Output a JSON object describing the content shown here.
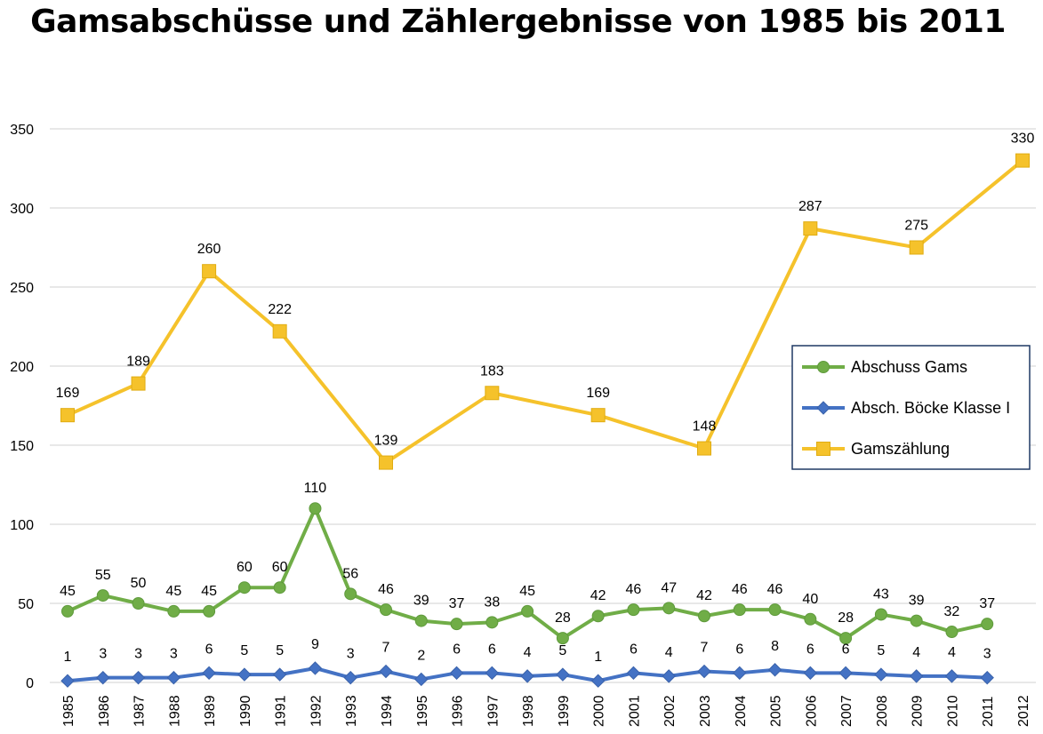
{
  "chart_data": {
    "type": "line",
    "title": "Gamsabschüsse und Zählergebnisse von 1985 bis 2011",
    "categories": [
      "1985",
      "1986",
      "1987",
      "1988",
      "1989",
      "1990",
      "1991",
      "1992",
      "1993",
      "1994",
      "1995",
      "1996",
      "1997",
      "1998",
      "1999",
      "2000",
      "2001",
      "2002",
      "2003",
      "2004",
      "2005",
      "2006",
      "2007",
      "2008",
      "2009",
      "2010",
      "2011",
      "2012"
    ],
    "y_ticks": [
      0,
      50,
      100,
      150,
      200,
      250,
      300,
      350
    ],
    "ylim": [
      0,
      350
    ],
    "grid": true,
    "legend_position": "right",
    "series": [
      {
        "name": "Abschuss Gams",
        "color": "#70AD47",
        "marker": "circle",
        "points": [
          {
            "x": "1985",
            "y": 45
          },
          {
            "x": "1986",
            "y": 55
          },
          {
            "x": "1987",
            "y": 50
          },
          {
            "x": "1988",
            "y": 45
          },
          {
            "x": "1989",
            "y": 45
          },
          {
            "x": "1990",
            "y": 60
          },
          {
            "x": "1991",
            "y": 60
          },
          {
            "x": "1992",
            "y": 110
          },
          {
            "x": "1993",
            "y": 56
          },
          {
            "x": "1994",
            "y": 46
          },
          {
            "x": "1995",
            "y": 39
          },
          {
            "x": "1996",
            "y": 37
          },
          {
            "x": "1997",
            "y": 38
          },
          {
            "x": "1998",
            "y": 45
          },
          {
            "x": "1999",
            "y": 28
          },
          {
            "x": "2000",
            "y": 42
          },
          {
            "x": "2001",
            "y": 46
          },
          {
            "x": "2002",
            "y": 47
          },
          {
            "x": "2003",
            "y": 42
          },
          {
            "x": "2004",
            "y": 46
          },
          {
            "x": "2005",
            "y": 46
          },
          {
            "x": "2006",
            "y": 40
          },
          {
            "x": "2007",
            "y": 28
          },
          {
            "x": "2008",
            "y": 43
          },
          {
            "x": "2009",
            "y": 39
          },
          {
            "x": "2010",
            "y": 32
          },
          {
            "x": "2011",
            "y": 37
          }
        ]
      },
      {
        "name": "Absch. Böcke Klasse I",
        "color": "#4472C4",
        "marker": "diamond",
        "points": [
          {
            "x": "1985",
            "y": 1
          },
          {
            "x": "1986",
            "y": 3
          },
          {
            "x": "1987",
            "y": 3
          },
          {
            "x": "1988",
            "y": 3
          },
          {
            "x": "1989",
            "y": 6
          },
          {
            "x": "1990",
            "y": 5
          },
          {
            "x": "1991",
            "y": 5
          },
          {
            "x": "1992",
            "y": 9
          },
          {
            "x": "1993",
            "y": 3
          },
          {
            "x": "1994",
            "y": 7
          },
          {
            "x": "1995",
            "y": 2
          },
          {
            "x": "1996",
            "y": 6
          },
          {
            "x": "1997",
            "y": 6
          },
          {
            "x": "1998",
            "y": 4
          },
          {
            "x": "1999",
            "y": 5
          },
          {
            "x": "2000",
            "y": 1
          },
          {
            "x": "2001",
            "y": 6
          },
          {
            "x": "2002",
            "y": 4
          },
          {
            "x": "2003",
            "y": 7
          },
          {
            "x": "2004",
            "y": 6
          },
          {
            "x": "2005",
            "y": 8
          },
          {
            "x": "2006",
            "y": 6
          },
          {
            "x": "2007",
            "y": 6
          },
          {
            "x": "2008",
            "y": 5
          },
          {
            "x": "2009",
            "y": 4
          },
          {
            "x": "2010",
            "y": 4
          },
          {
            "x": "2011",
            "y": 3
          }
        ]
      },
      {
        "name": "Gamszählung",
        "color": "#F5C22B",
        "marker": "square",
        "points": [
          {
            "x": "1985",
            "y": 169
          },
          {
            "x": "1987",
            "y": 189
          },
          {
            "x": "1989",
            "y": 260
          },
          {
            "x": "1991",
            "y": 222
          },
          {
            "x": "1994",
            "y": 139
          },
          {
            "x": "1997",
            "y": 183
          },
          {
            "x": "2000",
            "y": 169
          },
          {
            "x": "2003",
            "y": 148
          },
          {
            "x": "2006",
            "y": 287
          },
          {
            "x": "2009",
            "y": 275
          },
          {
            "x": "2012",
            "y": 330
          }
        ]
      }
    ]
  }
}
